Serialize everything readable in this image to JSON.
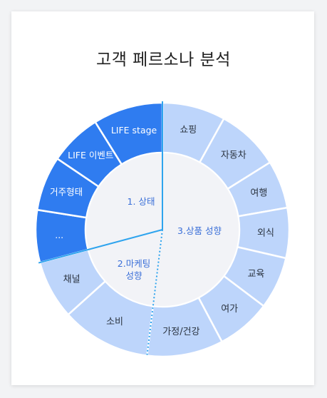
{
  "title": "고객 페르소나 분석",
  "groups": [
    {
      "id": "state",
      "label": "1. 상태"
    },
    {
      "id": "marketing",
      "label_lines": [
        "2.마케팅",
        "성향"
      ]
    },
    {
      "id": "product",
      "label": "3.상품 성향"
    }
  ],
  "segments": {
    "state": [
      "LIFE stage",
      "LIFE 이벤트",
      "거주형태",
      "..."
    ],
    "marketing": [
      "채널",
      "소비"
    ],
    "product": [
      "가정/건강",
      "여가",
      "교육",
      "외식",
      "여행",
      "자동차",
      "쇼핑"
    ]
  },
  "colors": {
    "state_fill": "#2f7cf0",
    "product_fill": "#bdd5fb",
    "inner_fill": "#f2f3f7",
    "divider": "#2fa4ee",
    "accent_text": "#3a6fd8"
  }
}
